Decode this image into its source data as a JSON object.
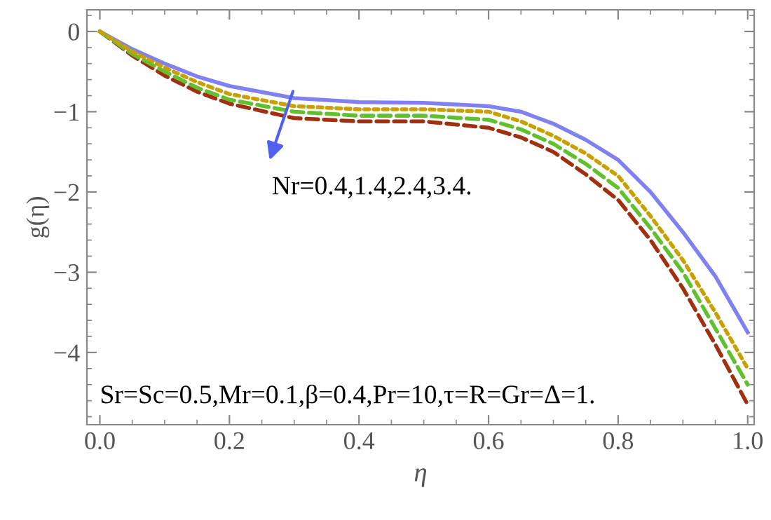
{
  "chart_data": {
    "type": "line",
    "xlabel": "η",
    "ylabel": "g(η)",
    "x": [
      0,
      0.05,
      0.1,
      0.15,
      0.2,
      0.3,
      0.4,
      0.5,
      0.6,
      0.65,
      0.7,
      0.75,
      0.8,
      0.85,
      0.9,
      0.95,
      1.0
    ],
    "series": [
      {
        "color": "#8080f0",
        "line_style": "solid",
        "values": [
          0,
          -0.22,
          -0.4,
          -0.56,
          -0.68,
          -0.83,
          -0.88,
          -0.89,
          -0.93,
          -1.0,
          -1.15,
          -1.35,
          -1.6,
          -2.0,
          -2.5,
          -3.05,
          -3.75
        ]
      },
      {
        "color": "#c8a000",
        "line_style": "dotted",
        "values": [
          0,
          -0.25,
          -0.45,
          -0.63,
          -0.78,
          -0.93,
          -0.97,
          -0.97,
          -1.0,
          -1.12,
          -1.3,
          -1.52,
          -1.8,
          -2.3,
          -2.85,
          -3.5,
          -4.2
        ]
      },
      {
        "color": "#60c030",
        "line_style": "dashed",
        "values": [
          0,
          -0.28,
          -0.5,
          -0.7,
          -0.85,
          -1.0,
          -1.05,
          -1.05,
          -1.1,
          -1.22,
          -1.4,
          -1.65,
          -1.95,
          -2.45,
          -3.0,
          -3.7,
          -4.4
        ]
      },
      {
        "color": "#a03010",
        "line_style": "dashed",
        "values": [
          0,
          -0.3,
          -0.55,
          -0.75,
          -0.9,
          -1.08,
          -1.12,
          -1.12,
          -1.2,
          -1.32,
          -1.5,
          -1.78,
          -2.1,
          -2.6,
          -3.2,
          -3.9,
          -4.65
        ]
      }
    ],
    "xlim": [
      -0.02,
      1.01
    ],
    "ylim": [
      -4.9,
      0.27
    ],
    "xticks": [
      {
        "value": 0,
        "label": "0.0"
      },
      0.2,
      0.4,
      0.6,
      0.8,
      {
        "value": 1,
        "label": "1.0"
      }
    ],
    "yticks": [
      {
        "value": -4,
        "label": "−4"
      },
      {
        "value": -3,
        "label": "−3"
      },
      {
        "value": -2,
        "label": "−2"
      },
      {
        "value": -1,
        "label": "−1"
      },
      0
    ],
    "grid": false,
    "legend": false,
    "annotations": [
      "Nr=0.4,1.4,2.4,3.4.",
      "Sr=Sc=0.5,Mr=0.1,β=0.4,Pr=10,τ=R=Gr=Δ=1."
    ]
  }
}
